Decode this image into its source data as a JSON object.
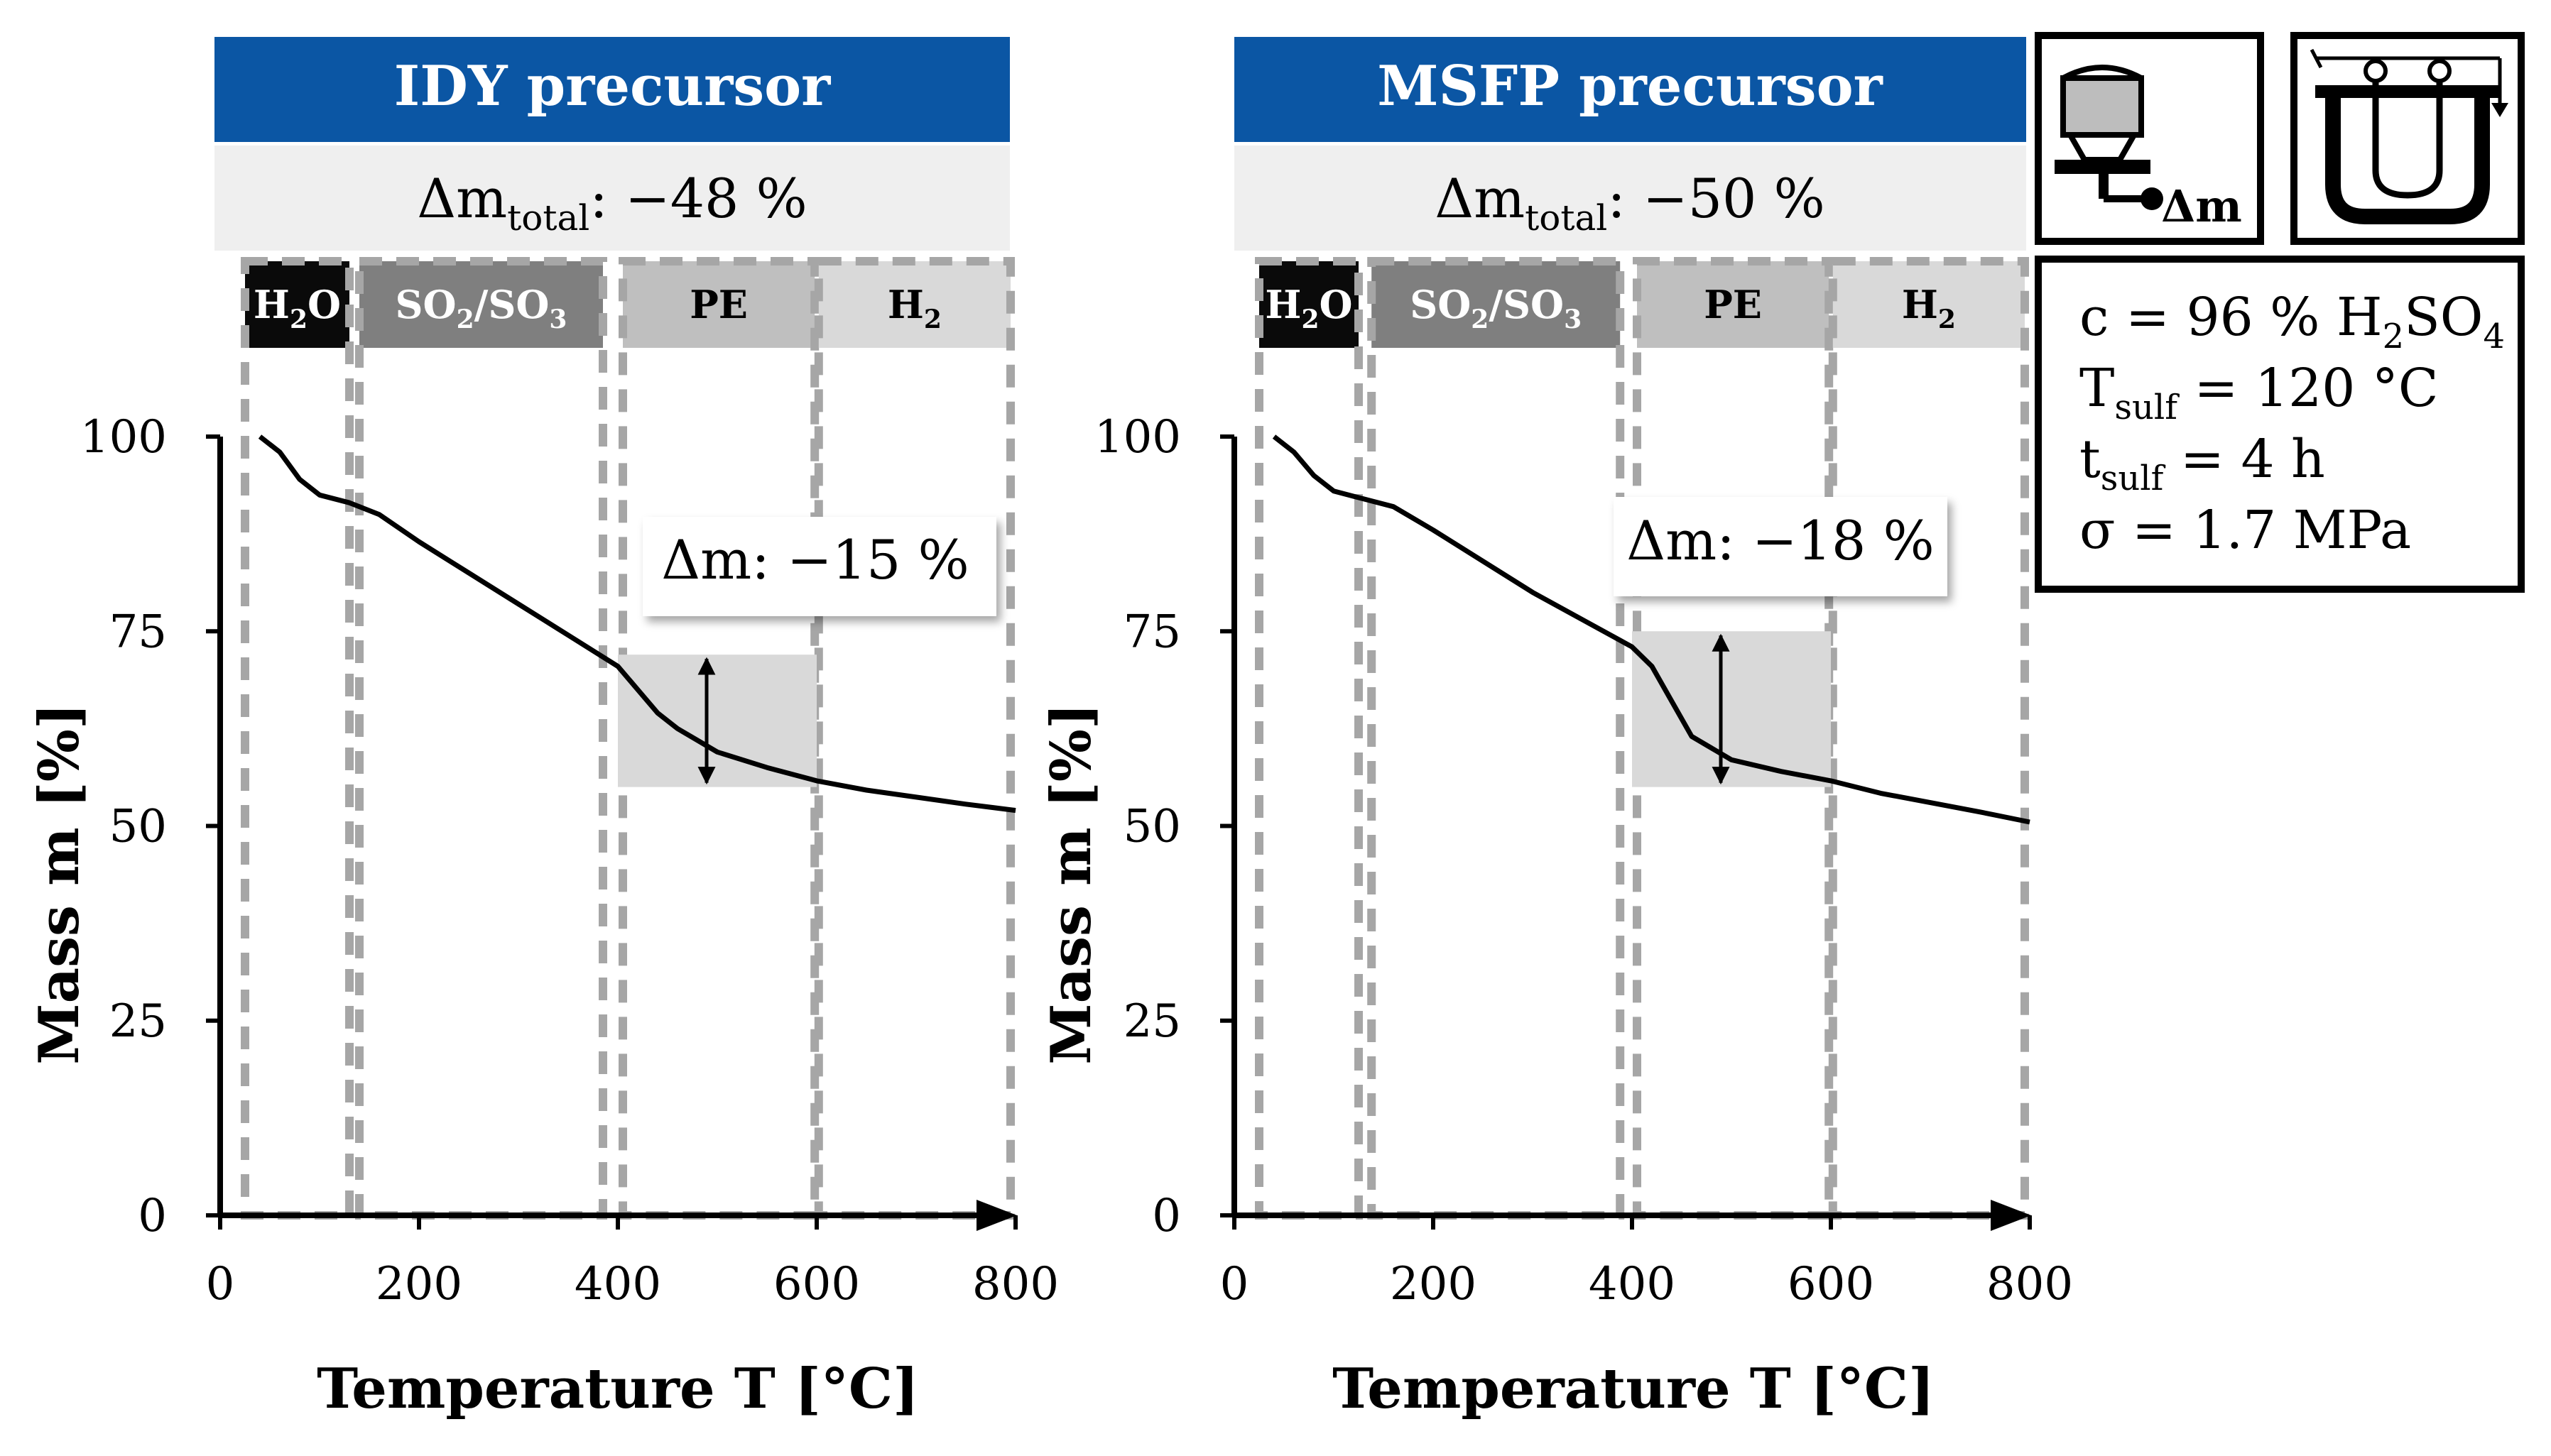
{
  "chart_data": [
    {
      "type": "line",
      "header": "IDY precursor",
      "total_loss": {
        "prefix": "Δm",
        "subscript": "total",
        "value": ": −48 %"
      },
      "step_annotation": "Δm: −15 %",
      "step_range": [
        55,
        72
      ],
      "step_temp_range": [
        400,
        600
      ],
      "xlabel": "Temperature T [°C]",
      "ylabel": "Mass m [%]",
      "xlim": [
        0,
        800
      ],
      "ylim": [
        0,
        100
      ],
      "xticks": [
        0,
        200,
        400,
        600,
        800
      ],
      "yticks": [
        0,
        25,
        50,
        75,
        100
      ],
      "x": [
        40,
        60,
        80,
        100,
        130,
        160,
        200,
        250,
        300,
        350,
        400,
        420,
        440,
        460,
        480,
        500,
        550,
        600,
        650,
        700,
        750,
        800
      ],
      "y": [
        100,
        98,
        94.5,
        92.5,
        91.5,
        90,
        86.5,
        82.5,
        78.5,
        74.5,
        70.5,
        67.5,
        64.5,
        62.5,
        61,
        59.5,
        57.5,
        55.8,
        54.6,
        53.7,
        52.8,
        52
      ],
      "regions": [
        {
          "label_main": "H",
          "label_sub": "2",
          "label_tail": "O",
          "start": 25,
          "end": 130,
          "color": "#0a0a0a",
          "text_color": "#ffffff"
        },
        {
          "label_main": "SO",
          "label_sub": "2",
          "label_tail": "/SO",
          "label_sub2": "3",
          "start": 140,
          "end": 385,
          "color": "#7f7f7f",
          "text_color": "#ffffff"
        },
        {
          "label_main": "PE",
          "start": 405,
          "end": 598,
          "color": "#bfbfbf",
          "text_color": "#000000"
        },
        {
          "label_main": "H",
          "label_sub": "2",
          "start": 602,
          "end": 795,
          "color": "#d9d9d9",
          "text_color": "#000000"
        }
      ]
    },
    {
      "type": "line",
      "header": "MSFP precursor",
      "total_loss": {
        "prefix": "Δm",
        "subscript": "total",
        "value": ": −50 %"
      },
      "step_annotation": "Δm: −18 %",
      "step_range": [
        55,
        75
      ],
      "step_temp_range": [
        400,
        600
      ],
      "xlabel": "Temperature T [°C]",
      "ylabel": "Mass m [%]",
      "xlim": [
        0,
        800
      ],
      "ylim": [
        0,
        100
      ],
      "xticks": [
        0,
        200,
        400,
        600,
        800
      ],
      "yticks": [
        0,
        25,
        50,
        75,
        100
      ],
      "x": [
        40,
        60,
        80,
        100,
        130,
        160,
        200,
        250,
        300,
        350,
        400,
        420,
        440,
        460,
        480,
        500,
        550,
        600,
        650,
        700,
        750,
        800
      ],
      "y": [
        100,
        98,
        95,
        93,
        92,
        91,
        88,
        84,
        80,
        76.5,
        73,
        70.5,
        66,
        61.5,
        60,
        58.5,
        57,
        55.8,
        54.2,
        53,
        51.8,
        50.5
      ],
      "regions": [
        {
          "label_main": "H",
          "label_sub": "2",
          "label_tail": "O",
          "start": 25,
          "end": 125,
          "color": "#0a0a0a",
          "text_color": "#ffffff"
        },
        {
          "label_main": "SO",
          "label_sub": "2",
          "label_tail": "/SO",
          "label_sub2": "3",
          "start": 138,
          "end": 388,
          "color": "#7f7f7f",
          "text_color": "#ffffff"
        },
        {
          "label_main": "PE",
          "start": 405,
          "end": 598,
          "color": "#bfbfbf",
          "text_color": "#000000"
        },
        {
          "label_main": "H",
          "label_sub": "2",
          "start": 602,
          "end": 795,
          "color": "#d9d9d9",
          "text_color": "#000000"
        }
      ]
    }
  ],
  "conditions": [
    {
      "main": "c = 96 % H",
      "sub": "2",
      "tail": "SO",
      "sub2": "4"
    },
    {
      "main": "T",
      "sub": "sulf",
      "tail": " = 120 °C"
    },
    {
      "main": "t",
      "sub": "sulf",
      "tail": " = 4 h"
    },
    {
      "main": "σ = 1.7 MPa"
    }
  ],
  "icons": {
    "balance_label": "Δm",
    "balance_icon": "thermogravimetric-balance-icon",
    "bath_icon": "sulfonation-bath-icon"
  },
  "colors": {
    "header_blue": "#0b56a4",
    "info_bar": "#efefef",
    "step_box": "#d9d9d9",
    "dash": "#a6a6a6"
  }
}
